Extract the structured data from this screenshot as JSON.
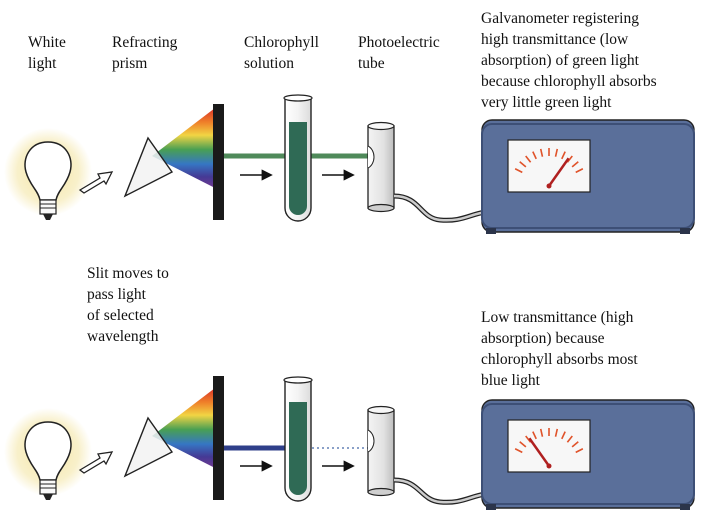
{
  "labels": {
    "white_light": [
      "White",
      "light"
    ],
    "prism": [
      "Refracting",
      "prism"
    ],
    "chlorophyll": [
      "Chlorophyll",
      "solution"
    ],
    "photo_tube": [
      "Photoelectric",
      "tube"
    ],
    "galv_high": [
      "Galvanometer registering",
      "high transmittance (low",
      "absorption) of green light",
      "because chlorophyll absorbs",
      "very little green light"
    ],
    "slit_moves": [
      "Slit moves to",
      "pass light",
      "of selected",
      "wavelength"
    ],
    "low_trans": [
      "Low transmittance (high",
      "absorption) because",
      "chlorophyll absorbs most",
      "blue light"
    ]
  },
  "meters": {
    "top_needle_level": 0.78,
    "bottom_needle_level": 0.22
  },
  "colors": {
    "meter_body": "#5a6f9a",
    "meter_dark": "#3d4f76",
    "solution": "#2f6a55",
    "green_beam": "#4f8a5a",
    "blue_beam": "#2f3f8a",
    "needle": "#b02020",
    "bulb_glow": "#f3e4a0",
    "slit": "#1a1a1a"
  }
}
